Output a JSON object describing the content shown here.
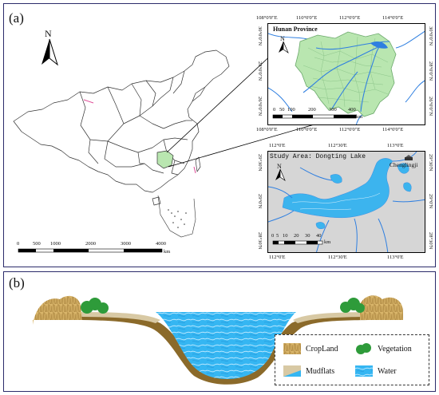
{
  "panel_a": {
    "label": "(a)",
    "north_label": "N",
    "scale_labels": [
      "0",
      "500",
      "1000",
      "2000",
      "3000",
      "4000"
    ],
    "scale_unit": "km",
    "inset_hunan": {
      "title": "Hunan Province",
      "north_label": "N",
      "top_ticks": [
        "108°0'0\"E",
        "110°0'0\"E",
        "112°0'0\"E",
        "114°0'0\"E"
      ],
      "bottom_ticks": [
        "108°0'0\"E",
        "110°0'0\"E",
        "112°0'0\"E",
        "114°0'0\"E"
      ],
      "right_ticks": [
        "30°0'0\"N",
        "28°0'0\"N",
        "26°0'0\"N"
      ],
      "left_ticks": [
        "30°0'0\"N",
        "28°0'0\"N",
        "26°0'0\"N"
      ],
      "scale_labels": [
        "0",
        "50",
        "100",
        "200",
        "300",
        "400"
      ],
      "scale_unit": "km"
    },
    "inset_lake": {
      "title": "Study Area: Dongting Lake",
      "place_label": "Chenglingji",
      "north_label": "N",
      "top_ticks": [
        "112°0'E",
        "112°30'E",
        "113°0'E"
      ],
      "bottom_ticks": [
        "112°0'E",
        "112°30'E",
        "113°0'E"
      ],
      "right_ticks": [
        "29°30'N",
        "29°0'N",
        "28°30'N"
      ],
      "left_ticks": [
        "29°30'N",
        "29°0'N",
        "28°30'N"
      ],
      "scale_labels": [
        "0",
        "5",
        "10",
        "20",
        "30",
        "40"
      ],
      "scale_unit": "km"
    }
  },
  "panel_b": {
    "label": "(b)",
    "legend": [
      {
        "label": "CropLand",
        "icon": "cropland-icon"
      },
      {
        "label": "Vegetation",
        "icon": "vegetation-icon"
      },
      {
        "label": "Mudflats",
        "icon": "mudflats-icon"
      },
      {
        "label": "Water",
        "icon": "water-icon"
      }
    ]
  },
  "colors": {
    "hunan_fill": "#b9e6b0",
    "lake_water": "#3cb4ee",
    "lake_land": "#d6d6d6",
    "river_blue": "#2f7fe0",
    "water_deep": "#33b5f0",
    "mud": "#8b6a2a",
    "crop": "#c9a352",
    "vegetation": "#2e9b3a",
    "frame": "#2b2b6b"
  }
}
